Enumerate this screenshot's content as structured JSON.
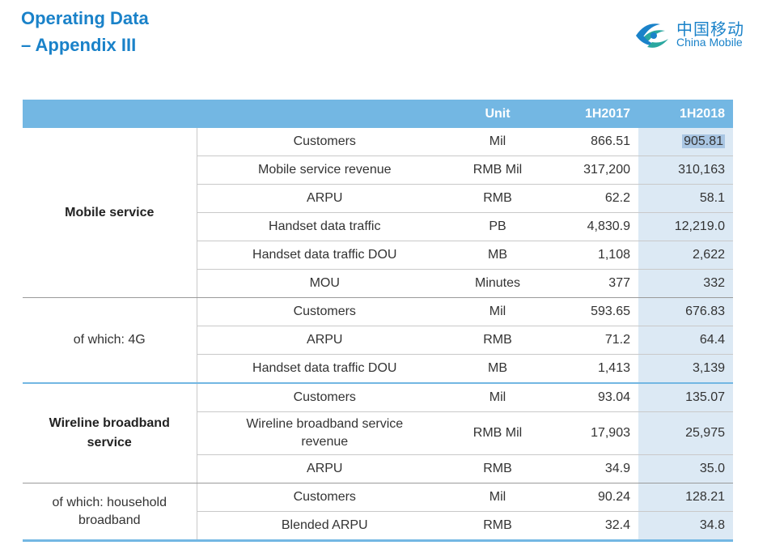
{
  "header": {
    "title_line1": "Operating Data",
    "title_line2": "– Appendix III"
  },
  "logo": {
    "icon": "china-mobile-logo-icon",
    "cn": "中国移动",
    "en": "China Mobile",
    "color": "#1a82c9"
  },
  "colors": {
    "accent": "#73b7e3",
    "highlight_column": "#dce9f4",
    "title": "#1a82c9"
  },
  "table": {
    "headers": {
      "unit": "Unit",
      "col1": "1H2017",
      "col2": "1H2018"
    },
    "groups": [
      {
        "label": "Mobile service",
        "rows": [
          {
            "metric": "Customers",
            "unit": "Mil",
            "v2017": "866.51",
            "v2018": "905.81"
          },
          {
            "metric": "Mobile service revenue",
            "unit": "RMB Mil",
            "v2017": "317,200",
            "v2018": "310,163"
          },
          {
            "metric": "ARPU",
            "unit": "RMB",
            "v2017": "62.2",
            "v2018": "58.1"
          },
          {
            "metric": "Handset data traffic",
            "unit": "PB",
            "v2017": "4,830.9",
            "v2018": "12,219.0"
          },
          {
            "metric": "Handset data traffic DOU",
            "unit": "MB",
            "v2017": "1,108",
            "v2018": "2,622"
          },
          {
            "metric": "MOU",
            "unit": "Minutes",
            "v2017": "377",
            "v2018": "332"
          }
        ]
      },
      {
        "label": "of which: 4G",
        "rows": [
          {
            "metric": "Customers",
            "unit": "Mil",
            "v2017": "593.65",
            "v2018": "676.83"
          },
          {
            "metric": "ARPU",
            "unit": "RMB",
            "v2017": "71.2",
            "v2018": "64.4"
          },
          {
            "metric": "Handset data traffic DOU",
            "unit": "MB",
            "v2017": "1,413",
            "v2018": "3,139"
          }
        ]
      },
      {
        "label_line1": "Wireline broadband",
        "label_line2": "service",
        "rows": [
          {
            "metric": "Customers",
            "unit": "Mil",
            "v2017": "93.04",
            "v2018": "135.07"
          },
          {
            "metric_line1": "Wireline broadband service",
            "metric_line2": "revenue",
            "unit": "RMB Mil",
            "v2017": "17,903",
            "v2018": "25,975"
          },
          {
            "metric": "ARPU",
            "unit": "RMB",
            "v2017": "34.9",
            "v2018": "35.0"
          }
        ]
      },
      {
        "label_line1": "of which: household",
        "label_line2": "broadband",
        "rows": [
          {
            "metric": "Customers",
            "unit": "Mil",
            "v2017": "90.24",
            "v2018": "128.21"
          },
          {
            "metric": "Blended ARPU",
            "unit": "RMB",
            "v2017": "32.4",
            "v2018": "34.8"
          }
        ]
      }
    ]
  }
}
